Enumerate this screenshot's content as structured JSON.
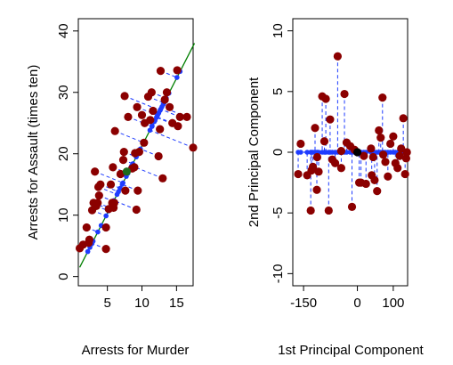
{
  "chart_data": [
    {
      "type": "scatter",
      "panel": "left",
      "title": "",
      "xlabel": "Arrests for Murder",
      "ylabel": "Arrests for Assault (times ten)",
      "xlim": [
        0.8,
        17.4
      ],
      "ylim": [
        -1.5,
        42
      ],
      "xticks": [
        5,
        10,
        15
      ],
      "yticks": [
        0,
        10,
        20,
        30,
        40
      ],
      "grid": false,
      "legend": "none",
      "colors": {
        "points": "#8B0000",
        "projections": "#1E3CFF",
        "line": "#007F00",
        "mean": "#1E6B1E"
      },
      "line": {
        "from": [
          1.0,
          1.5
        ],
        "to": [
          17.6,
          38.0
        ]
      },
      "mean": [
        7.8,
        17.1
      ],
      "points": [
        [
          1.0,
          4.6
        ],
        [
          1.5,
          5.2
        ],
        [
          2.0,
          8.0
        ],
        [
          2.4,
          6.0
        ],
        [
          2.3,
          5.5
        ],
        [
          2.8,
          10.8
        ],
        [
          3.0,
          12.0
        ],
        [
          3.2,
          17.1
        ],
        [
          3.4,
          11.5
        ],
        [
          3.6,
          12.0
        ],
        [
          3.7,
          14.6
        ],
        [
          3.8,
          13.2
        ],
        [
          4.0,
          15.0
        ],
        [
          4.8,
          8.0
        ],
        [
          4.8,
          4.5
        ],
        [
          5.2,
          11.0
        ],
        [
          5.5,
          15.0
        ],
        [
          5.7,
          12.0
        ],
        [
          5.8,
          17.8
        ],
        [
          5.9,
          11.2
        ],
        [
          6.0,
          12.0
        ],
        [
          6.1,
          23.7
        ],
        [
          6.9,
          16.7
        ],
        [
          7.3,
          19.0
        ],
        [
          7.4,
          20.3
        ],
        [
          7.5,
          29.4
        ],
        [
          7.6,
          14.0
        ],
        [
          8.0,
          26.0
        ],
        [
          8.6,
          17.6
        ],
        [
          8.9,
          17.8
        ],
        [
          9.0,
          20.1
        ],
        [
          9.2,
          10.9
        ],
        [
          9.3,
          27.6
        ],
        [
          9.4,
          14.0
        ],
        [
          9.6,
          20.3
        ],
        [
          10.0,
          26.3
        ],
        [
          10.3,
          21.8
        ],
        [
          10.4,
          25.0
        ],
        [
          10.9,
          29.3
        ],
        [
          11.2,
          25.5
        ],
        [
          11.4,
          30.0
        ],
        [
          11.6,
          27.0
        ],
        [
          12.4,
          19.6
        ],
        [
          12.6,
          24.0
        ],
        [
          12.7,
          33.5
        ],
        [
          13.0,
          16.0
        ],
        [
          13.3,
          28.8
        ],
        [
          13.6,
          30.0
        ],
        [
          14.0,
          27.6
        ],
        [
          14.4,
          25.0
        ],
        [
          15.1,
          33.6
        ],
        [
          15.2,
          24.5
        ],
        [
          15.5,
          26.0
        ],
        [
          16.5,
          26.0
        ],
        [
          17.4,
          21.0
        ]
      ]
    },
    {
      "type": "scatter",
      "panel": "right",
      "title": "",
      "xlabel": "1st Principal Component",
      "ylabel": "2nd Principal Component",
      "xlim": [
        -180,
        140
      ],
      "ylim": [
        -11,
        11
      ],
      "xticks": [
        -150,
        0,
        100
      ],
      "xtick_labels": [
        "-150",
        "0",
        "100"
      ],
      "yticks": [
        -10,
        -5,
        0,
        5,
        10
      ],
      "yticks_labels_shown": [
        "-10",
        "-5",
        "0",
        "5",
        "10"
      ],
      "grid": false,
      "legend": "none",
      "colors": {
        "points": "#8B0000",
        "projections": "#1E3CFF",
        "mean": "#000000"
      },
      "mean": [
        0,
        0
      ],
      "points": [
        [
          -165,
          -1.8
        ],
        [
          -158,
          0.7
        ],
        [
          -140,
          -1.9
        ],
        [
          -130,
          -4.8
        ],
        [
          -124,
          -1.2
        ],
        [
          -118,
          2.0
        ],
        [
          -113,
          -3.1
        ],
        [
          -108,
          -1.6
        ],
        [
          -98,
          4.6
        ],
        [
          -92,
          0.9
        ],
        [
          -88,
          4.4
        ],
        [
          -80,
          -4.8
        ],
        [
          -76,
          2.7
        ],
        [
          -70,
          -0.6
        ],
        [
          -55,
          7.9
        ],
        [
          -45,
          -1.3
        ],
        [
          -36,
          4.8
        ],
        [
          -30,
          0.8
        ],
        [
          -20,
          0.5
        ],
        [
          -15,
          -4.5
        ],
        [
          -8,
          0.2
        ],
        [
          5,
          -2.5
        ],
        [
          10,
          -2.5
        ],
        [
          18,
          -0.3
        ],
        [
          24,
          -2.6
        ],
        [
          40,
          -1.9
        ],
        [
          48,
          -2.3
        ],
        [
          55,
          -3.2
        ],
        [
          60,
          1.8
        ],
        [
          65,
          1.2
        ],
        [
          70,
          4.5
        ],
        [
          72,
          -0.2
        ],
        [
          78,
          -0.8
        ],
        [
          85,
          -2.0
        ],
        [
          92,
          0.7
        ],
        [
          100,
          1.3
        ],
        [
          106,
          -0.9
        ],
        [
          112,
          -1.3
        ],
        [
          118,
          -0.3
        ],
        [
          122,
          0.3
        ],
        [
          128,
          2.8
        ],
        [
          133,
          -1.8
        ],
        [
          136,
          -0.5
        ],
        [
          138,
          0.0
        ],
        [
          -128,
          -1.5
        ],
        [
          -112,
          -0.4
        ],
        [
          -62,
          -0.9
        ],
        [
          -45,
          0.1
        ],
        [
          38,
          0.3
        ],
        [
          44,
          -0.4
        ]
      ]
    }
  ]
}
